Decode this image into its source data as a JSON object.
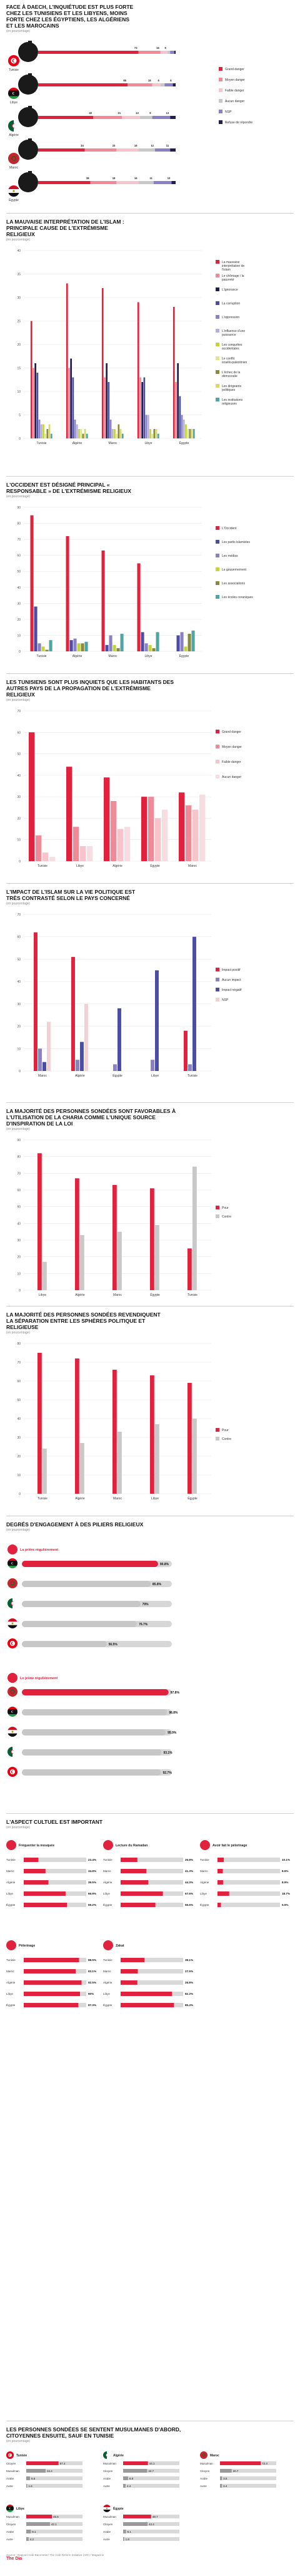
{
  "colors": {
    "red": "#e0223f",
    "rose": "#f08a98",
    "pink": "#f7c4cc",
    "grey": "#c8c8c8",
    "purple": "#4b4ca3",
    "lilac": "#8b80c6",
    "navy": "#1f1f4f",
    "lime": "#c3d43a",
    "teal": "#4fa4a4",
    "olive": "#8a8a3a",
    "black": "#111111"
  },
  "s1": {
    "title": "FACE À DAECH, L'INQUIÉTUDE EST PLUS FORTE CHEZ LES TUNISIENS ET LES LIBYENS, MOINS FORTE CHEZ LES ÉGYPTIENS, LES ALGÉRIENS ET LES MAROCAINS",
    "subtitle": "(en pourcentage)",
    "legend": [
      "Grand danger",
      "Moyen danger",
      "Faible danger",
      "Aucun danger",
      "NSP",
      "Refuse de répondre"
    ],
    "countries": [
      "Tunisie",
      "Libye",
      "Algérie",
      "Maroc",
      "Égypte"
    ]
  },
  "s2": {
    "title": "LA MAUVAISE INTERPRÉTATION DE L'ISLAM : PRINCIPALE CAUSE DE L'EXTRÉMISME RELIGIEUX",
    "subtitle": "(en pourcentage)"
  },
  "s3": {
    "title": "L'OCCIDENT EST DÉSIGNÉ PRINCIPAL « RESPONSABLE » DE L'EXTRÉMISME RELIGIEUX",
    "subtitle": "(en pourcentage)"
  },
  "s4": {
    "title": "LES TUNISIENS SONT PLUS INQUIETS QUE LES HABITANTS DES AUTRES PAYS DE LA PROPAGATION DE L'EXTRÉMISME RELIGIEUX",
    "subtitle": "(en pourcentage)"
  },
  "s5": {
    "title": "L'IMPACT DE L'ISLAM SUR LA VIE POLITIQUE EST TRÈS CONTRASTÉ SELON LE PAYS CONCERNÉ",
    "subtitle": "(en pourcentage)"
  },
  "s6": {
    "title": "LA MAJORITÉ DES PERSONNES SONDÉES SONT FAVORABLES À L'UTILISATION DE LA CHARIA COMME L'UNIQUE SOURCE D'INSPIRATION DE LA LOI",
    "subtitle": "(en pourcentage)"
  },
  "s7": {
    "title": "LA MAJORITÉ DES PERSONNES SONDÉES REVENDIQUENT LA SÉPARATION ENTRE LES SPHÈRES POLITIQUE ET RELIGIEUSE",
    "subtitle": "(en pourcentage)"
  },
  "s8": {
    "title": "DEGRÉS D'ENGAGEMENT À DES PILIERS RELIGIEUX",
    "subtitle": "(en pourcentage)",
    "group1": "La prière régulièrement",
    "group2": "Le jeûne régulièrement"
  },
  "s9": {
    "title": "L'ASPECT CULTUEL EST IMPORTANT",
    "subtitle": "(en pourcentage)",
    "cards": [
      {
        "label": "Fréquenter la mosquée"
      },
      {
        "label": "Lecture du Ramadan"
      },
      {
        "label": "Avoir fait le pèlerinage"
      },
      {
        "label": "Pèlerinage"
      },
      {
        "label": "Zakat"
      }
    ]
  },
  "s10": {
    "title": "LES PERSONNES SONDÉES SE SENTENT MUSULMANES D'ABORD, CITOYENNES ENSUITE, SAUF EN TUNISIE",
    "subtitle": "(en pourcentage)",
    "cols": [
      "Tunisie",
      "Algérie",
      "Maroc",
      "Libye",
      "Égypte"
    ]
  },
  "footer": {
    "source": "Source : Rapport Arab Barometer/ The Arab Reform Initiative (ARI) / Magazine",
    "brand": "The Dia"
  },
  "chart_data": [
    {
      "id": "s1",
      "type": "bar",
      "orientation": "horizontal-stacked",
      "categories": [
        "Tunisie",
        "Libye",
        "Algérie",
        "Maroc",
        "Égypte"
      ],
      "series": [
        {
          "name": "Grand danger",
          "values": [
            73.0,
            65.0,
            40.0,
            34.0,
            38.0
          ]
        },
        {
          "name": "Moyen danger",
          "values": [
            16.0,
            18.0,
            21.0,
            23.0,
            19.0
          ]
        },
        {
          "name": "Faible danger",
          "values": [
            5.0,
            6.0,
            13.0,
            16.0,
            16.0
          ]
        },
        {
          "name": "Aucun danger",
          "values": [
            2.0,
            3.0,
            9.0,
            12.0,
            11.0
          ]
        },
        {
          "name": "NSP",
          "values": [
            3.0,
            6.0,
            13.0,
            11.0,
            13.0
          ]
        },
        {
          "name": "Refuse de répondre",
          "values": [
            1.0,
            2.0,
            4.0,
            4.0,
            3.0
          ]
        }
      ]
    },
    {
      "id": "s2",
      "type": "bar",
      "categories": [
        "Tunisie",
        "Algérie",
        "Maroc",
        "Libye",
        "Égypte"
      ],
      "ylim": [
        0,
        40
      ],
      "yticks": [
        0,
        5,
        10,
        15,
        20,
        25,
        30,
        35,
        40
      ],
      "series": [
        {
          "name": "La mauvaise interprétation de l'islam",
          "values": [
            25,
            33,
            32,
            29,
            28
          ]
        },
        {
          "name": "Le chômage / la pauvreté",
          "values": [
            15,
            15,
            13,
            13,
            12
          ]
        },
        {
          "name": "L'ignorance",
          "values": [
            16,
            17,
            16,
            12,
            16
          ]
        },
        {
          "name": "La corruption",
          "values": [
            14,
            13,
            12,
            13,
            9
          ]
        },
        {
          "name": "L'oppression",
          "values": [
            4,
            4,
            4,
            5,
            5
          ]
        },
        {
          "name": "L'influence d'une puissance",
          "values": [
            3,
            3,
            2,
            5,
            4
          ]
        },
        {
          "name": "Les conquêtes occidentales",
          "values": [
            3,
            2,
            2,
            2,
            3
          ]
        },
        {
          "name": "Le conflit israélo-palestinien",
          "values": [
            1,
            2,
            1,
            1,
            2
          ]
        },
        {
          "name": "L'échec de la démocratie",
          "values": [
            2,
            1,
            3,
            2,
            2
          ]
        },
        {
          "name": "Les dirigeants politiques",
          "values": [
            3,
            2,
            2,
            2,
            2
          ]
        },
        {
          "name": "Les institutions religieuses",
          "values": [
            1,
            1,
            1,
            1,
            2
          ]
        }
      ]
    },
    {
      "id": "s3",
      "type": "bar",
      "categories": [
        "Tunisie",
        "Algérie",
        "Maroc",
        "Libye",
        "Égypte"
      ],
      "ylim": [
        0,
        90
      ],
      "yticks": [
        0,
        10,
        20,
        30,
        40,
        50,
        60,
        70,
        80,
        90
      ],
      "series": [
        {
          "name": "L'Occident",
          "values": [
            85,
            72,
            63,
            55,
            0
          ]
        },
        {
          "name": "Les partis islamistes",
          "values": [
            28,
            7,
            4,
            12,
            10
          ]
        },
        {
          "name": "Les médias",
          "values": [
            5,
            8,
            10,
            5,
            12
          ]
        },
        {
          "name": "Le gouvernement",
          "values": [
            3,
            5,
            4,
            4,
            3
          ]
        },
        {
          "name": "Les associations",
          "values": [
            1,
            5,
            2,
            2,
            11
          ]
        },
        {
          "name": "Les écoles coraniques",
          "values": [
            7,
            6,
            11,
            12,
            13
          ]
        }
      ]
    },
    {
      "id": "s4",
      "type": "bar",
      "categories": [
        "Tunisie",
        "Libye",
        "Algérie",
        "Égypte",
        "Maroc"
      ],
      "ylim": [
        0,
        70
      ],
      "yticks": [
        0,
        10,
        20,
        30,
        40,
        50,
        60,
        70
      ],
      "series": [
        {
          "name": "Grand danger",
          "values": [
            60,
            44,
            39,
            30,
            32
          ]
        },
        {
          "name": "Moyen danger",
          "values": [
            12,
            16,
            28,
            30,
            26
          ]
        },
        {
          "name": "Faible danger",
          "values": [
            4,
            7,
            15,
            20,
            24
          ]
        },
        {
          "name": "Aucun danger",
          "values": [
            2,
            7,
            16,
            24,
            31
          ]
        }
      ]
    },
    {
      "id": "s5",
      "type": "bar",
      "categories": [
        "Maroc",
        "Algérie",
        "Égypte",
        "Libye",
        "Tunisie"
      ],
      "ylim": [
        0,
        70
      ],
      "yticks": [
        0,
        10,
        20,
        30,
        40,
        50,
        60,
        70
      ],
      "series": [
        {
          "name": "Impact positif",
          "values": [
            62,
            51,
            0,
            0,
            18
          ]
        },
        {
          "name": "Aucun impact",
          "values": [
            10,
            5,
            3,
            5,
            3
          ]
        },
        {
          "name": "Impact négatif",
          "values": [
            4,
            13,
            28,
            45,
            60
          ]
        },
        {
          "name": "NSP",
          "values": [
            22,
            30,
            0,
            0,
            0
          ]
        }
      ]
    },
    {
      "id": "s6",
      "type": "bar",
      "categories": [
        "Libye",
        "Algérie",
        "Maroc",
        "Égypte",
        "Tunisie"
      ],
      "ylim": [
        0,
        90
      ],
      "yticks": [
        0,
        10,
        20,
        30,
        40,
        50,
        60,
        70,
        80,
        90
      ],
      "series": [
        {
          "name": "Pour",
          "values": [
            82,
            67,
            63,
            61,
            25
          ]
        },
        {
          "name": "Contre",
          "values": [
            17,
            33,
            35,
            39,
            74
          ]
        }
      ]
    },
    {
      "id": "s7",
      "type": "bar",
      "categories": [
        "Tunisie",
        "Algérie",
        "Maroc",
        "Libye",
        "Égypte"
      ],
      "ylim": [
        0,
        80
      ],
      "yticks": [
        0,
        10,
        20,
        30,
        40,
        50,
        60,
        70,
        80
      ],
      "series": [
        {
          "name": "Pour",
          "values": [
            75,
            72,
            66,
            63,
            59
          ]
        },
        {
          "name": "Contre",
          "values": [
            24,
            27,
            33,
            37,
            40
          ]
        }
      ]
    },
    {
      "id": "s8a",
      "type": "bar",
      "orientation": "horizontal",
      "title": "La prière régulièrement",
      "categories": [
        "Libye",
        "Maroc",
        "Algérie",
        "Égypte",
        "Tunisie"
      ],
      "values": [
        90.8,
        85.8,
        79.0,
        76.7,
        56.5
      ],
      "xlim": [
        0,
        100
      ]
    },
    {
      "id": "s8b",
      "type": "bar",
      "orientation": "horizontal",
      "title": "Le jeûne régulièrement",
      "categories": [
        "Maroc",
        "Libye",
        "Égypte",
        "Algérie",
        "Tunisie"
      ],
      "values": [
        97.8,
        96.8,
        95.9,
        93.1,
        92.7
      ],
      "xlim": [
        0,
        100
      ]
    },
    {
      "id": "s9a",
      "type": "bar",
      "orientation": "horizontal",
      "title": "Fréquenter la mosquée",
      "categories": [
        "Tunisie",
        "Maroc",
        "Algérie",
        "Libye",
        "Égypte"
      ],
      "values": [
        23.4,
        34.8,
        39.5,
        66.9,
        69.2
      ],
      "xlim": [
        0,
        100
      ]
    },
    {
      "id": "s9b",
      "type": "bar",
      "orientation": "horizontal",
      "title": "Lecture du Ramadan",
      "categories": [
        "Tunisie",
        "Maroc",
        "Algérie",
        "Libye",
        "Égypte"
      ],
      "values": [
        26.8,
        41.3,
        44.3,
        67.6,
        55.6
      ],
      "xlim": [
        0,
        100
      ]
    },
    {
      "id": "s9c",
      "type": "bar",
      "orientation": "horizontal",
      "title": "Avoir fait le pèlerinage",
      "categories": [
        "Tunisie",
        "Maroc",
        "Algérie",
        "Libye",
        "Égypte"
      ],
      "values": [
        10.1,
        8.5,
        8.9,
        18.7,
        5.5
      ],
      "xlim": [
        0,
        100
      ]
    },
    {
      "id": "s9d",
      "type": "bar",
      "orientation": "horizontal",
      "title": "Pèlerinage",
      "categories": [
        "Tunisie",
        "Maroc",
        "Algérie",
        "Libye",
        "Égypte"
      ],
      "values": [
        88.5,
        83.1,
        92.5,
        90.0,
        87.3
      ],
      "xlim": [
        0,
        100
      ]
    },
    {
      "id": "s9e",
      "type": "bar",
      "orientation": "horizontal",
      "title": "Zakat",
      "categories": [
        "Tunisie",
        "Maroc",
        "Algérie",
        "Libye",
        "Égypte"
      ],
      "values": [
        38.1,
        27.5,
        26.8,
        82.2,
        85.4
      ],
      "xlim": [
        0,
        100
      ]
    },
    {
      "id": "s10",
      "type": "bar",
      "orientation": "horizontal",
      "panels": [
        {
          "country": "Tunisie",
          "categories": [
            "Citoyen",
            "Musulman",
            "Arabe",
            "Autre"
          ],
          "values": [
            57.4,
            34.4,
            6.6,
            1.6
          ]
        },
        {
          "country": "Algérie",
          "categories": [
            "Musulman",
            "Citoyen",
            "Arabe",
            "Autre"
          ],
          "values": [
            44.1,
            42.7,
            8.8,
            4.4
          ]
        },
        {
          "country": "Maroc",
          "categories": [
            "Musulman",
            "Citoyen",
            "Arabe",
            "Autre"
          ],
          "values": [
            72.4,
            20.7,
            3.5,
            3.4
          ]
        },
        {
          "country": "Libye",
          "categories": [
            "Musulman",
            "Citoyen",
            "Arabe",
            "Autre"
          ],
          "values": [
            45.6,
            42.1,
            8.1,
            4.2
          ]
        },
        {
          "country": "Égypte",
          "categories": [
            "Musulman",
            "Citoyen",
            "Arabe",
            "Autre"
          ],
          "values": [
            49.7,
            43.4,
            5.1,
            1.8
          ]
        }
      ]
    }
  ]
}
